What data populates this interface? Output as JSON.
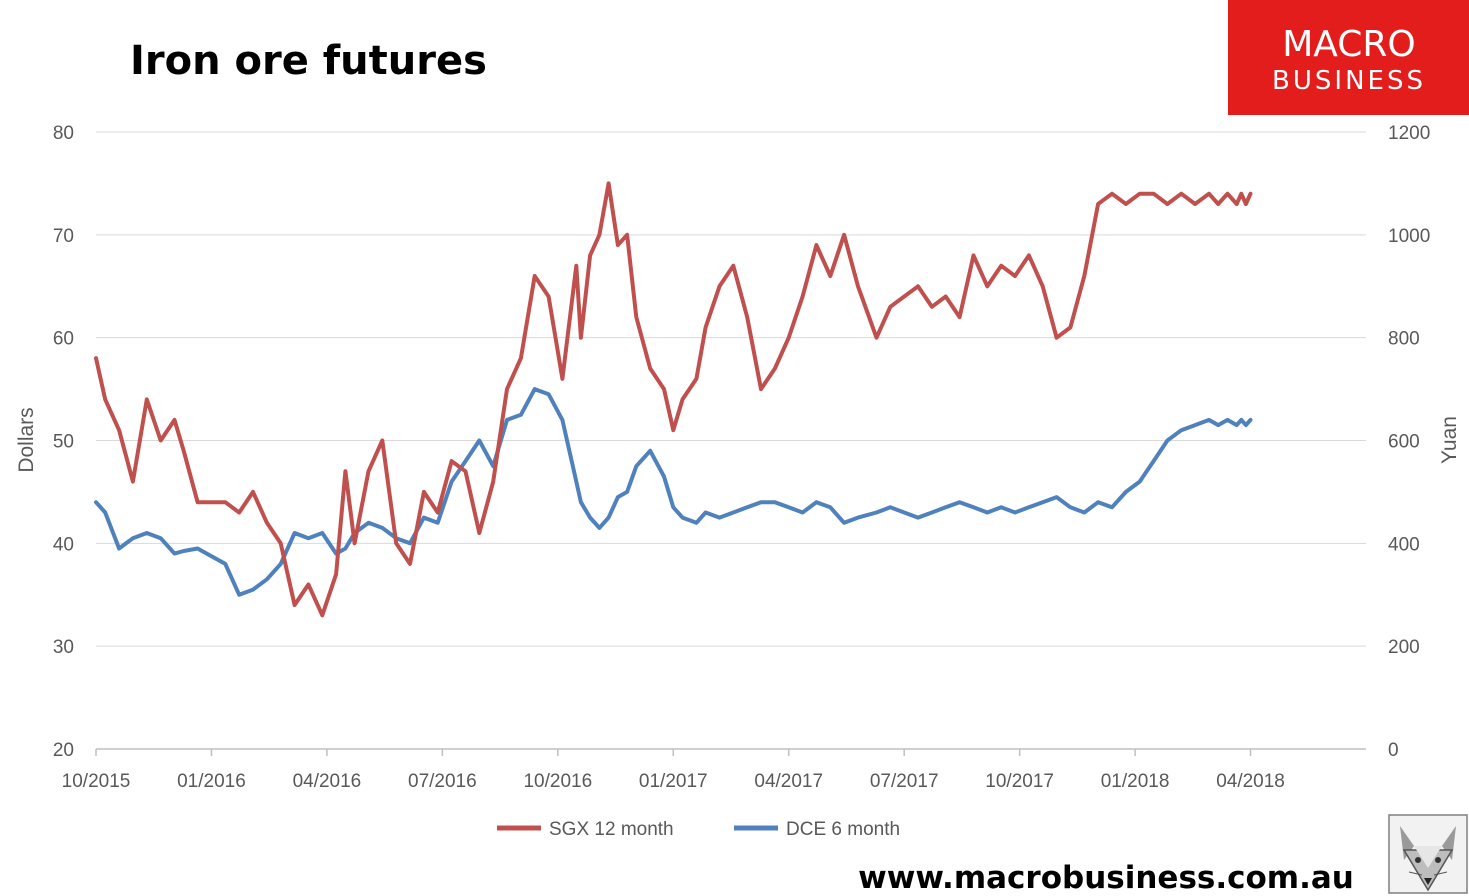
{
  "colors": {
    "sgx": "#c0504d",
    "dce": "#4f81bd",
    "grid": "#d9d9d9",
    "logo_bg": "#e31c1c"
  },
  "logo": {
    "line1": "MACRO",
    "line2": "BUSINESS"
  },
  "footer": {
    "url": "www.macrobusiness.com.au"
  },
  "mascot_icon": "fox-icon",
  "chart_data": {
    "type": "line",
    "title": "Iron ore futures",
    "xlabel": "",
    "ylabel": "Dollars",
    "y2label": "Yuan",
    "ylim": [
      20,
      80
    ],
    "y2lim": [
      0,
      1200
    ],
    "yticks": [
      20,
      30,
      40,
      50,
      60,
      70,
      80
    ],
    "y2ticks": [
      0,
      200,
      400,
      600,
      800,
      1000,
      1200
    ],
    "xlim": [
      "2015-10",
      "2018-07"
    ],
    "xticks": [
      "10/2015",
      "01/2016",
      "04/2016",
      "07/2016",
      "10/2016",
      "01/2017",
      "04/2017",
      "07/2017",
      "10/2017",
      "01/2018",
      "04/2018"
    ],
    "grid": true,
    "legend_position": "bottom",
    "series": [
      {
        "name": "SGX 12 month",
        "axis": "left",
        "x": [
          2015.75,
          2015.77,
          2015.8,
          2015.83,
          2015.86,
          2015.89,
          2015.92,
          2015.94,
          2015.97,
          2016.0,
          2016.03,
          2016.06,
          2016.09,
          2016.12,
          2016.15,
          2016.18,
          2016.21,
          2016.24,
          2016.27,
          2016.29,
          2016.31,
          2016.34,
          2016.37,
          2016.4,
          2016.43,
          2016.46,
          2016.49,
          2016.52,
          2016.55,
          2016.58,
          2016.61,
          2016.64,
          2016.67,
          2016.7,
          2016.73,
          2016.76,
          2016.79,
          2016.8,
          2016.82,
          2016.84,
          2016.86,
          2016.88,
          2016.9,
          2016.92,
          2016.95,
          2016.98,
          2017.0,
          2017.02,
          2017.05,
          2017.07,
          2017.1,
          2017.13,
          2017.16,
          2017.19,
          2017.22,
          2017.25,
          2017.28,
          2017.31,
          2017.34,
          2017.37,
          2017.4,
          2017.44,
          2017.47,
          2017.5,
          2017.53,
          2017.56,
          2017.59,
          2017.62,
          2017.65,
          2017.68,
          2017.71,
          2017.74,
          2017.77,
          2017.8,
          2017.83,
          2017.86,
          2017.89,
          2017.92,
          2017.95,
          2017.98,
          2018.01,
          2018.04,
          2018.07,
          2018.1,
          2018.13,
          2018.16,
          2018.18,
          2018.2,
          2018.22,
          2018.23,
          2018.24,
          2018.25
        ],
        "values": [
          58,
          54,
          51,
          46,
          54,
          50,
          52,
          49,
          44,
          44,
          44,
          43,
          45,
          42,
          40,
          34,
          36,
          33,
          37,
          47,
          40,
          47,
          50,
          40,
          38,
          45,
          43,
          48,
          47,
          41,
          46,
          55,
          58,
          66,
          64,
          56,
          67,
          60,
          68,
          70,
          75,
          69,
          70,
          62,
          57,
          55,
          51,
          54,
          56,
          61,
          65,
          67,
          62,
          55,
          57,
          60,
          64,
          69,
          66,
          70,
          65,
          60,
          63,
          64,
          65,
          63,
          64,
          62,
          68,
          65,
          67,
          66,
          68,
          65,
          60,
          61,
          66,
          73,
          74,
          73,
          74,
          74,
          73,
          74,
          73,
          74,
          73,
          74,
          73,
          74,
          73,
          74
        ]
      },
      {
        "name": "DCE 6 month",
        "axis": "right",
        "x": [
          2015.75,
          2015.77,
          2015.8,
          2015.83,
          2015.86,
          2015.89,
          2015.92,
          2015.94,
          2015.97,
          2016.0,
          2016.03,
          2016.06,
          2016.09,
          2016.12,
          2016.15,
          2016.18,
          2016.21,
          2016.24,
          2016.27,
          2016.29,
          2016.31,
          2016.34,
          2016.37,
          2016.4,
          2016.43,
          2016.46,
          2016.49,
          2016.52,
          2016.55,
          2016.58,
          2016.61,
          2016.64,
          2016.67,
          2016.7,
          2016.73,
          2016.76,
          2016.79,
          2016.8,
          2016.82,
          2016.84,
          2016.86,
          2016.88,
          2016.9,
          2016.92,
          2016.95,
          2016.98,
          2017.0,
          2017.02,
          2017.05,
          2017.07,
          2017.1,
          2017.13,
          2017.16,
          2017.19,
          2017.22,
          2017.25,
          2017.28,
          2017.31,
          2017.34,
          2017.37,
          2017.4,
          2017.44,
          2017.47,
          2017.5,
          2017.53,
          2017.56,
          2017.59,
          2017.62,
          2017.65,
          2017.68,
          2017.71,
          2017.74,
          2017.77,
          2017.8,
          2017.83,
          2017.86,
          2017.89,
          2017.92,
          2017.95,
          2017.98,
          2018.01,
          2018.04,
          2018.07,
          2018.1,
          2018.13,
          2018.16,
          2018.18,
          2018.2,
          2018.22,
          2018.23,
          2018.24,
          2018.25
        ],
        "values": [
          480,
          460,
          390,
          410,
          420,
          410,
          380,
          385,
          390,
          375,
          360,
          300,
          310,
          330,
          360,
          420,
          410,
          420,
          380,
          390,
          420,
          440,
          430,
          410,
          400,
          450,
          440,
          520,
          560,
          600,
          550,
          640,
          650,
          700,
          690,
          640,
          520,
          480,
          450,
          430,
          450,
          490,
          500,
          550,
          580,
          530,
          470,
          450,
          440,
          460,
          450,
          460,
          470,
          480,
          480,
          470,
          460,
          480,
          470,
          440,
          450,
          460,
          470,
          460,
          450,
          460,
          470,
          480,
          470,
          460,
          470,
          460,
          470,
          480,
          490,
          470,
          460,
          480,
          470,
          500,
          520,
          560,
          600,
          620,
          630,
          640,
          630,
          640,
          630,
          640,
          630,
          640
        ]
      }
    ]
  }
}
